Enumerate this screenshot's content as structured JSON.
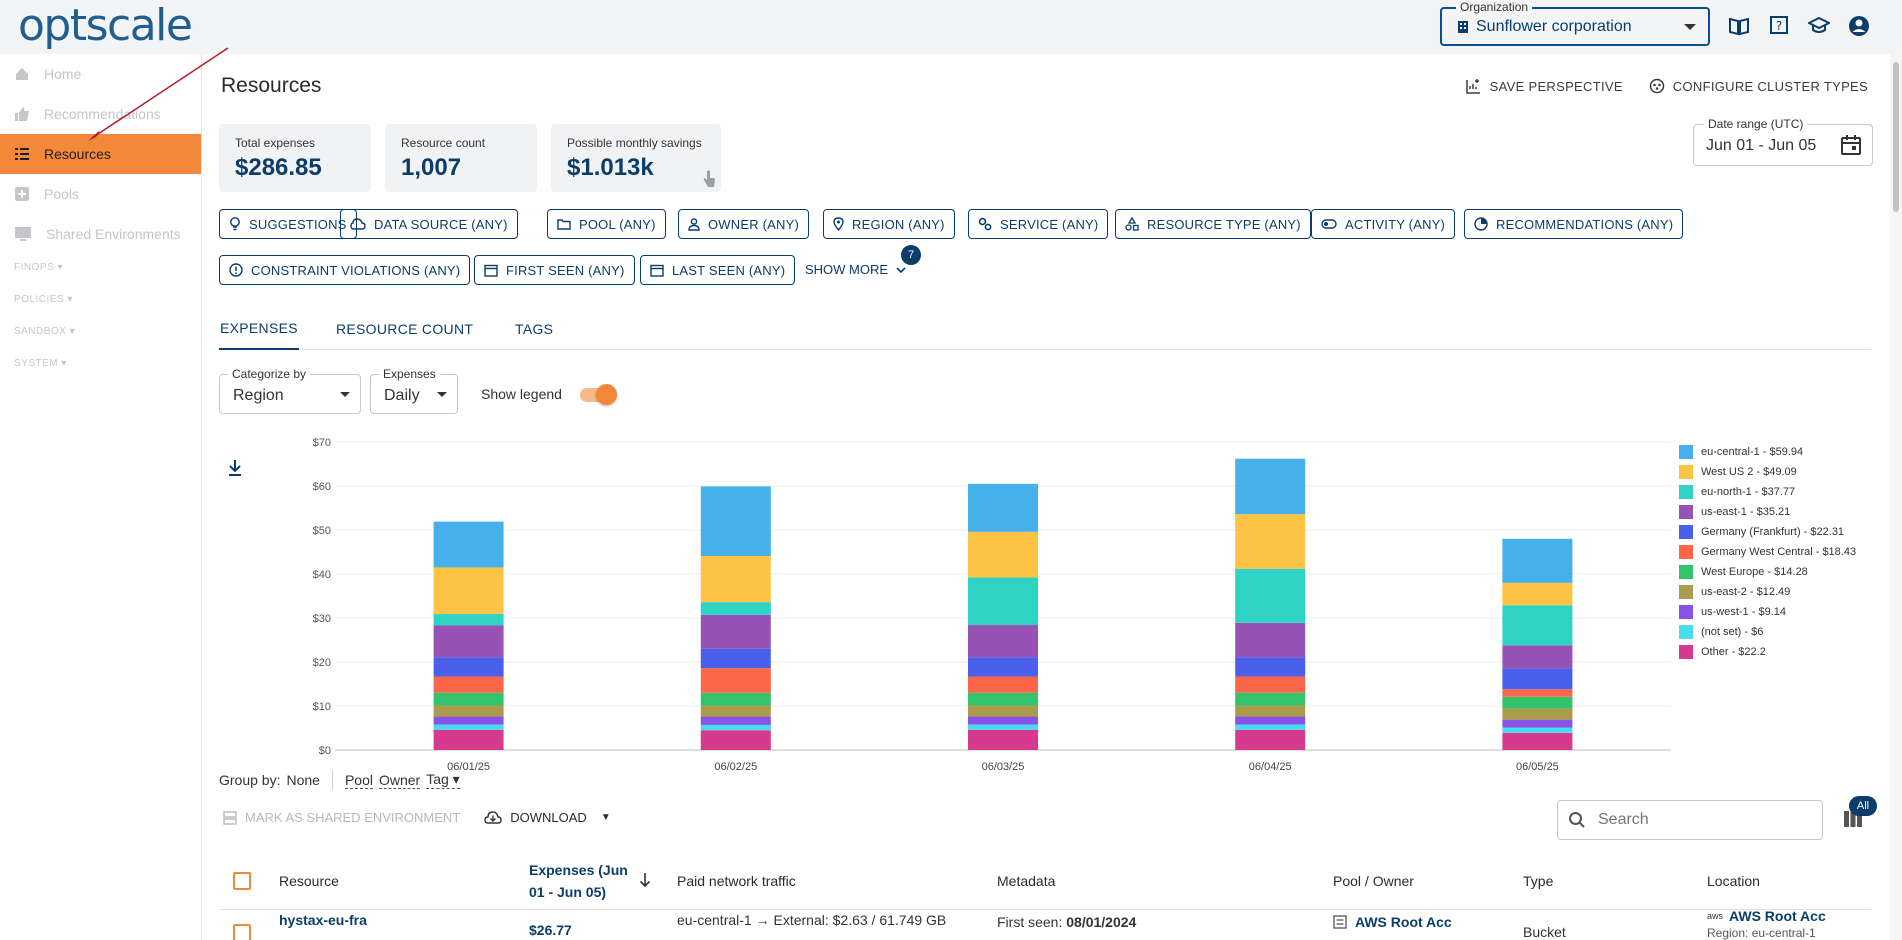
{
  "app": {
    "logo": "optscale"
  },
  "header": {
    "organization_label": "Organization",
    "organization_value": "Sunflower corporation",
    "icons": [
      "book-icon",
      "help-icon",
      "academy-icon",
      "account-icon"
    ]
  },
  "sidebar": {
    "items": [
      {
        "label": "Home",
        "icon": "home-icon"
      },
      {
        "label": "Recommendations",
        "icon": "thumb-up-icon"
      },
      {
        "label": "Resources",
        "icon": "list-icon"
      },
      {
        "label": "Pools",
        "icon": "pool-icon"
      },
      {
        "label": "Shared Environments",
        "icon": "monitor-icon"
      }
    ],
    "sections": [
      "FINOPS",
      "POLICIES",
      "SANDBOX",
      "SYSTEM"
    ]
  },
  "page": {
    "title": "Resources",
    "save_perspective": "SAVE PERSPECTIVE",
    "configure_cluster_types": "CONFIGURE CLUSTER TYPES"
  },
  "summary": {
    "total_expenses_label": "Total expenses",
    "total_expenses_value": "$286.85",
    "resource_count_label": "Resource count",
    "resource_count_value": "1,007",
    "savings_label": "Possible monthly savings",
    "savings_value": "$1.013k"
  },
  "date_range": {
    "label": "Date range (UTC)",
    "value": "Jun 01 - Jun 05"
  },
  "filters": {
    "chips": [
      "SUGGESTIONS",
      "DATA SOURCE (ANY)",
      "POOL (ANY)",
      "OWNER (ANY)",
      "REGION (ANY)",
      "SERVICE (ANY)",
      "RESOURCE TYPE (ANY)",
      "ACTIVITY (ANY)",
      "RECOMMENDATIONS (ANY)",
      "CONSTRAINT VIOLATIONS (ANY)",
      "FIRST SEEN (ANY)",
      "LAST SEEN (ANY)"
    ],
    "show_more": "SHOW MORE",
    "show_more_count": "7"
  },
  "tabs": [
    "EXPENSES",
    "RESOURCE COUNT",
    "TAGS"
  ],
  "controls": {
    "categorize_label": "Categorize by",
    "categorize_value": "Region",
    "expenses_label": "Expenses",
    "expenses_value": "Daily",
    "show_legend_label": "Show legend",
    "show_legend_on": true
  },
  "chart_data": {
    "type": "bar",
    "stacked": true,
    "categories": [
      "06/01/25",
      "06/02/25",
      "06/03/25",
      "06/04/25",
      "06/05/25"
    ],
    "ylim": [
      0,
      70
    ],
    "yticks": [
      "$0",
      "$10",
      "$20",
      "$30",
      "$40",
      "$50",
      "$60",
      "$70"
    ],
    "series": [
      {
        "name": "Other",
        "legend": "Other - $22.2",
        "color": "#d63a8c",
        "values": [
          4.6,
          4.5,
          4.6,
          4.6,
          3.9
        ]
      },
      {
        "name": "(not set)",
        "legend": "(not set) - $6",
        "color": "#47dcf0",
        "values": [
          1.2,
          1.2,
          1.2,
          1.2,
          1.2
        ]
      },
      {
        "name": "us-west-1",
        "legend": "us-west-1 - $9.14",
        "color": "#8a53e8",
        "values": [
          1.8,
          1.9,
          1.8,
          1.8,
          1.8
        ]
      },
      {
        "name": "us-east-2",
        "legend": "us-east-2 - $12.49",
        "color": "#a99a4c",
        "values": [
          2.5,
          2.5,
          2.5,
          2.5,
          2.5
        ]
      },
      {
        "name": "West Europe",
        "legend": "West Europe - $14.28",
        "color": "#32c36c",
        "values": [
          2.9,
          2.9,
          2.9,
          2.9,
          2.7
        ]
      },
      {
        "name": "Germany West Central",
        "legend": "Germany West Central - $18.43",
        "color": "#fb6648",
        "values": [
          3.7,
          5.6,
          3.7,
          3.7,
          1.7
        ]
      },
      {
        "name": "Germany (Frankfurt)",
        "legend": "Germany (Frankfurt) - $22.31",
        "color": "#4a60ea",
        "values": [
          4.4,
          4.4,
          4.4,
          4.4,
          4.7
        ]
      },
      {
        "name": "us-east-1",
        "legend": "us-east-1 - $35.21",
        "color": "#9752b5",
        "values": [
          7.2,
          7.7,
          7.3,
          7.8,
          5.3
        ]
      },
      {
        "name": "eu-north-1",
        "legend": "eu-north-1 - $37.77",
        "color": "#2fd3c4",
        "values": [
          2.6,
          2.9,
          10.8,
          12.3,
          9.1
        ]
      },
      {
        "name": "West US 2",
        "legend": "West US 2 - $49.09",
        "color": "#fcc344",
        "values": [
          10.6,
          10.5,
          10.4,
          12.4,
          5.1
        ]
      },
      {
        "name": "eu-central-1",
        "legend": "eu-central-1 - $59.94",
        "color": "#45b0ea",
        "values": [
          10.4,
          15.8,
          10.9,
          12.6,
          10.0
        ]
      }
    ]
  },
  "table": {
    "group_by_label": "Group by:",
    "group_by_value": "None",
    "group_by_options": [
      "Pool",
      "Owner",
      "Tag"
    ],
    "mark_shared": "MARK AS SHARED ENVIRONMENT",
    "download": "DOWNLOAD",
    "search_placeholder": "Search",
    "columns_badge": "All",
    "headers": {
      "resource": "Resource",
      "expenses": "Expenses (Jun 01 - Jun 05)",
      "traffic": "Paid network traffic",
      "metadata": "Metadata",
      "pool_owner": "Pool / Owner",
      "type": "Type",
      "location": "Location"
    },
    "rows": [
      {
        "resource": "hystax-eu-fra",
        "expenses": "$26.77",
        "traffic": "eu-central-1 → External: $2.63 / 61.749 GB",
        "metadata_label": "First seen:",
        "metadata_value": "08/01/2024",
        "pool": "AWS Root Acc",
        "type": "Bucket",
        "location": "AWS Root Acc",
        "location_sub": "Region: eu-central-1"
      }
    ]
  }
}
